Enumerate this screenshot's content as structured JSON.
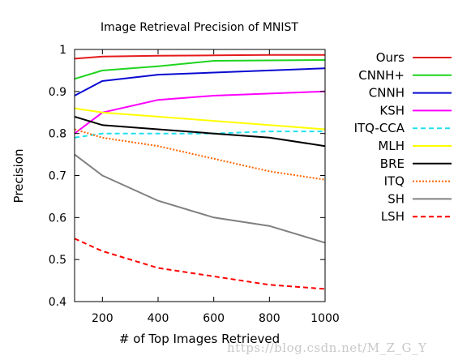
{
  "watermark": "https://blog.csdn.net/M_Z_G_Y",
  "chart_data": {
    "type": "line",
    "title": "Image Retrieval Precision of MNIST",
    "xlabel": "# of Top Images Retrieved",
    "ylabel": "Precision",
    "xlim": [
      100,
      1000
    ],
    "ylim": [
      0.4,
      1.0
    ],
    "xticks": [
      200,
      400,
      600,
      800,
      1000
    ],
    "yticks": [
      0.4,
      0.5,
      0.6,
      0.7,
      0.8,
      0.9,
      1
    ],
    "grid": false,
    "legend_position": "right",
    "series": [
      {
        "name": "Ours",
        "color": "#e41a1c",
        "dash": "solid",
        "x": [
          100,
          200,
          400,
          600,
          800,
          1000
        ],
        "values": [
          0.978,
          0.983,
          0.985,
          0.986,
          0.987,
          0.987
        ]
      },
      {
        "name": "CNNH+",
        "color": "#1fd41f",
        "dash": "solid",
        "x": [
          100,
          200,
          400,
          600,
          800,
          1000
        ],
        "values": [
          0.93,
          0.95,
          0.96,
          0.973,
          0.974,
          0.975
        ]
      },
      {
        "name": "CNNH",
        "color": "#0a0ad2",
        "dash": "solid",
        "x": [
          100,
          200,
          400,
          600,
          800,
          1000
        ],
        "values": [
          0.89,
          0.925,
          0.94,
          0.945,
          0.95,
          0.955
        ]
      },
      {
        "name": "KSH",
        "color": "#ff00ff",
        "dash": "solid",
        "x": [
          100,
          200,
          400,
          600,
          800,
          1000
        ],
        "values": [
          0.8,
          0.85,
          0.88,
          0.89,
          0.895,
          0.9
        ]
      },
      {
        "name": "ITQ-CCA",
        "color": "#20e0f0",
        "dash": "dashed",
        "x": [
          100,
          200,
          400,
          600,
          800,
          1000
        ],
        "values": [
          0.79,
          0.8,
          0.8,
          0.8,
          0.805,
          0.805
        ]
      },
      {
        "name": "MLH",
        "color": "#ffff00",
        "dash": "solid",
        "x": [
          100,
          200,
          400,
          600,
          800,
          1000
        ],
        "values": [
          0.86,
          0.85,
          0.84,
          0.83,
          0.82,
          0.81
        ]
      },
      {
        "name": "BRE",
        "color": "#000000",
        "dash": "solid",
        "x": [
          100,
          200,
          400,
          600,
          800,
          1000
        ],
        "values": [
          0.84,
          0.82,
          0.81,
          0.8,
          0.79,
          0.77
        ]
      },
      {
        "name": "ITQ",
        "color": "#ff6600",
        "dash": "dotted",
        "x": [
          100,
          200,
          400,
          600,
          800,
          1000
        ],
        "values": [
          0.81,
          0.79,
          0.77,
          0.74,
          0.71,
          0.69
        ]
      },
      {
        "name": "SH",
        "color": "#808080",
        "dash": "solid",
        "x": [
          100,
          200,
          400,
          600,
          800,
          1000
        ],
        "values": [
          0.75,
          0.7,
          0.64,
          0.6,
          0.58,
          0.54
        ]
      },
      {
        "name": "LSH",
        "color": "#ff0000",
        "dash": "dashed",
        "x": [
          100,
          200,
          400,
          600,
          800,
          1000
        ],
        "values": [
          0.55,
          0.52,
          0.48,
          0.46,
          0.44,
          0.43
        ]
      }
    ]
  }
}
